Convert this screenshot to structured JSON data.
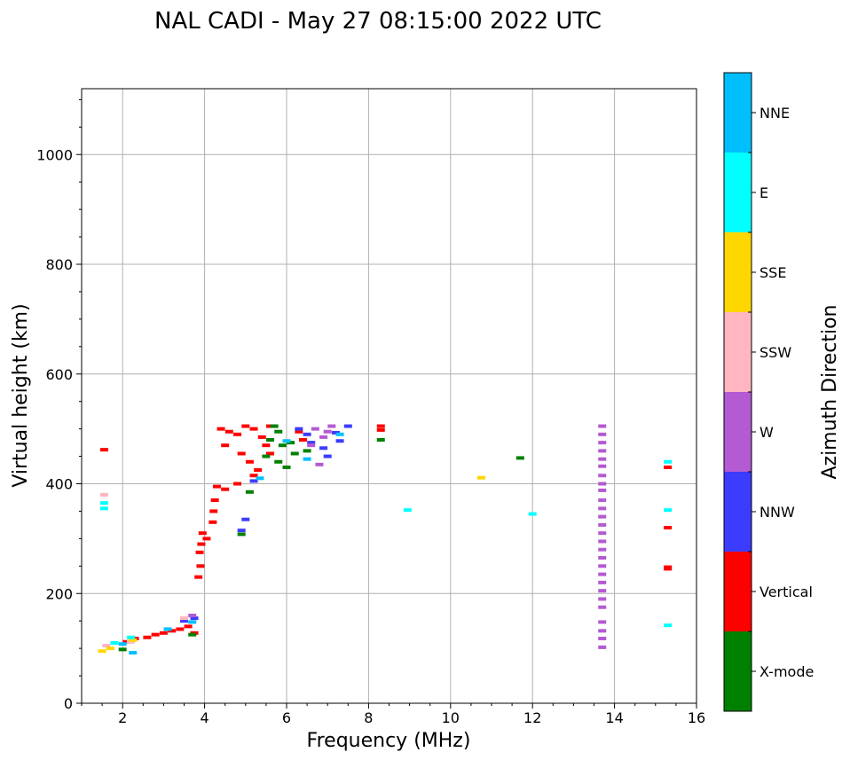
{
  "chart_data": {
    "type": "scatter",
    "title": "NAL CADI - May 27 08:15:00 2022 UTC",
    "xlabel": "Frequency (MHz)",
    "ylabel": "Virtual height (km)",
    "xlim": [
      1,
      16
    ],
    "ylim": [
      0,
      1120
    ],
    "xticks": [
      2,
      4,
      6,
      8,
      10,
      12,
      14,
      16
    ],
    "yticks": [
      0,
      200,
      400,
      600,
      800,
      1000
    ],
    "grid": true,
    "colorbar": {
      "label": "Azimuth Direction",
      "categories": [
        {
          "name": "X-mode",
          "color": "#008000"
        },
        {
          "name": "Vertical",
          "color": "#ff0000"
        },
        {
          "name": "NNW",
          "color": "#3c3cff"
        },
        {
          "name": "W",
          "color": "#b45ad2"
        },
        {
          "name": "SSW",
          "color": "#ffb6c1"
        },
        {
          "name": "SSE",
          "color": "#ffd700"
        },
        {
          "name": "E",
          "color": "#00ffff"
        },
        {
          "name": "NNE",
          "color": "#00bfff"
        }
      ]
    },
    "series": [
      {
        "name": "Vertical",
        "points": [
          [
            1.55,
            462
          ],
          [
            2.1,
            112
          ],
          [
            2.3,
            118
          ],
          [
            2.6,
            120
          ],
          [
            2.8,
            125
          ],
          [
            3.0,
            128
          ],
          [
            3.2,
            132
          ],
          [
            3.4,
            135
          ],
          [
            3.6,
            140
          ],
          [
            3.75,
            128
          ],
          [
            3.85,
            230
          ],
          [
            3.9,
            250
          ],
          [
            3.88,
            275
          ],
          [
            3.92,
            290
          ],
          [
            3.95,
            310
          ],
          [
            4.05,
            300
          ],
          [
            4.2,
            330
          ],
          [
            4.22,
            350
          ],
          [
            4.25,
            370
          ],
          [
            4.3,
            395
          ],
          [
            4.5,
            390
          ],
          [
            4.8,
            400
          ],
          [
            5.2,
            415
          ],
          [
            4.4,
            500
          ],
          [
            4.6,
            495
          ],
          [
            4.8,
            490
          ],
          [
            5.0,
            505
          ],
          [
            5.2,
            500
          ],
          [
            5.4,
            485
          ],
          [
            5.5,
            470
          ],
          [
            5.6,
            455
          ],
          [
            4.5,
            470
          ],
          [
            4.9,
            455
          ],
          [
            5.1,
            440
          ],
          [
            5.3,
            425
          ],
          [
            5.6,
            505
          ],
          [
            6.3,
            495
          ],
          [
            6.4,
            480
          ],
          [
            8.3,
            505
          ],
          [
            8.3,
            498
          ],
          [
            15.3,
            430
          ],
          [
            15.3,
            320
          ],
          [
            15.3,
            248
          ],
          [
            15.3,
            245
          ]
        ]
      },
      {
        "name": "X-mode",
        "points": [
          [
            2.0,
            98
          ],
          [
            3.7,
            125
          ],
          [
            4.9,
            308
          ],
          [
            5.1,
            385
          ],
          [
            5.7,
            505
          ],
          [
            5.8,
            495
          ],
          [
            5.6,
            480
          ],
          [
            5.9,
            470
          ],
          [
            5.5,
            450
          ],
          [
            5.8,
            440
          ],
          [
            6.0,
            430
          ],
          [
            6.2,
            455
          ],
          [
            6.5,
            460
          ],
          [
            6.1,
            475
          ],
          [
            8.3,
            480
          ],
          [
            11.7,
            447
          ]
        ]
      },
      {
        "name": "NNW",
        "points": [
          [
            3.5,
            150
          ],
          [
            3.75,
            155
          ],
          [
            4.9,
            315
          ],
          [
            5.0,
            335
          ],
          [
            5.2,
            405
          ],
          [
            6.3,
            500
          ],
          [
            6.5,
            490
          ],
          [
            6.6,
            475
          ],
          [
            6.9,
            465
          ],
          [
            7.0,
            450
          ],
          [
            7.3,
            478
          ],
          [
            7.5,
            505
          ],
          [
            7.2,
            493
          ]
        ]
      },
      {
        "name": "W",
        "points": [
          [
            3.7,
            160
          ],
          [
            6.7,
            500
          ],
          [
            7.0,
            495
          ],
          [
            6.9,
            485
          ],
          [
            6.6,
            470
          ],
          [
            6.8,
            435
          ],
          [
            7.1,
            505
          ],
          [
            13.7,
            505
          ],
          [
            13.7,
            490
          ],
          [
            13.7,
            475
          ],
          [
            13.7,
            460
          ],
          [
            13.7,
            445
          ],
          [
            13.7,
            432
          ],
          [
            13.7,
            415
          ],
          [
            13.7,
            400
          ],
          [
            13.7,
            388
          ],
          [
            13.7,
            370
          ],
          [
            13.7,
            355
          ],
          [
            13.7,
            340
          ],
          [
            13.7,
            325
          ],
          [
            13.7,
            310
          ],
          [
            13.7,
            295
          ],
          [
            13.7,
            280
          ],
          [
            13.7,
            265
          ],
          [
            13.7,
            250
          ],
          [
            13.7,
            235
          ],
          [
            13.7,
            220
          ],
          [
            13.7,
            205
          ],
          [
            13.7,
            190
          ],
          [
            13.7,
            175
          ],
          [
            13.7,
            148
          ],
          [
            13.7,
            132
          ],
          [
            13.7,
            118
          ],
          [
            13.7,
            102
          ]
        ]
      },
      {
        "name": "SSW",
        "points": [
          [
            1.55,
            380
          ],
          [
            1.6,
            105
          ],
          [
            2.2,
            112
          ],
          [
            3.5,
            155
          ]
        ]
      },
      {
        "name": "SSE",
        "points": [
          [
            1.5,
            95
          ],
          [
            1.7,
            100
          ],
          [
            2.25,
            115
          ],
          [
            10.75,
            411
          ]
        ]
      },
      {
        "name": "E",
        "points": [
          [
            1.55,
            365
          ],
          [
            1.55,
            355
          ],
          [
            1.8,
            110
          ],
          [
            2.2,
            120
          ],
          [
            8.95,
            352
          ],
          [
            12.0,
            345
          ],
          [
            15.3,
            440
          ],
          [
            15.3,
            352
          ],
          [
            15.3,
            142
          ]
        ]
      },
      {
        "name": "NNE",
        "points": [
          [
            2.25,
            92
          ],
          [
            2.0,
            108
          ],
          [
            3.1,
            135
          ],
          [
            3.7,
            148
          ],
          [
            5.35,
            410
          ],
          [
            6.0,
            478
          ],
          [
            6.5,
            445
          ],
          [
            7.3,
            490
          ]
        ]
      }
    ]
  }
}
